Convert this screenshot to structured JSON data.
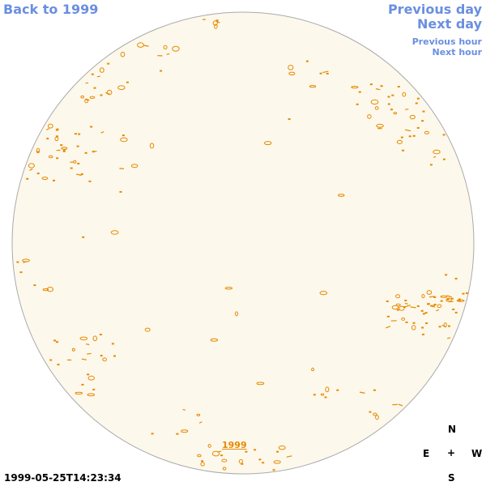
{
  "navigation": {
    "back_label": "Back to 1999",
    "previous_day_label": "Previous day",
    "next_day_label": "Next day",
    "previous_hour_label": "Previous hour",
    "next_hour_label": "Next hour"
  },
  "sun_image": {
    "year_label": "1999",
    "timestamp": "1999-05-25T14:23:34",
    "disk_color": "#fdf8ec",
    "contour_color": "#e68a00"
  },
  "compass": {
    "north": "N",
    "east": "E",
    "center": "+",
    "west": "W",
    "south": "S"
  }
}
